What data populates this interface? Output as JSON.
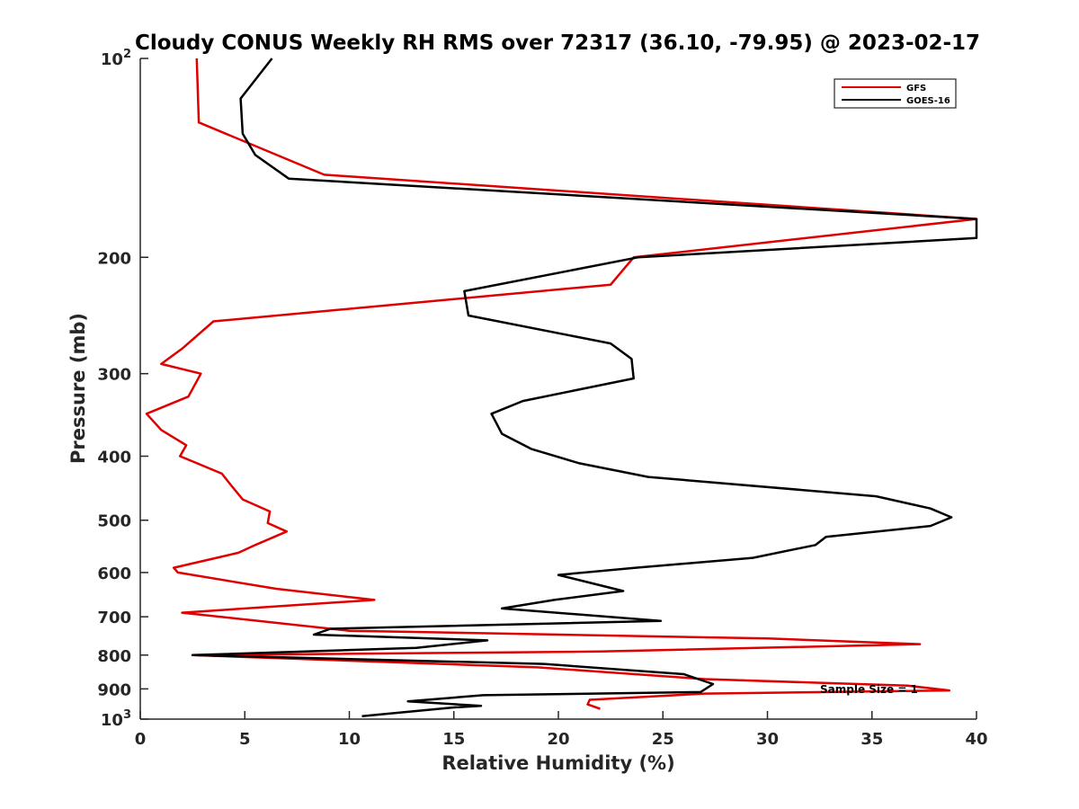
{
  "chart_data": {
    "type": "line",
    "title": "Cloudy CONUS Weekly RH RMS over 72317 (36.10, -79.95) @ 2023-02-17",
    "xlabel": "Relative Humidity (%)",
    "ylabel": "Pressure (mb)",
    "xlim": [
      0,
      40
    ],
    "ylim": [
      100,
      1000
    ],
    "y_scale": "log",
    "y_reversed": true,
    "grid": false,
    "legend_position": "top-right",
    "x_ticks": [
      "0",
      "5",
      "10",
      "15",
      "20",
      "25",
      "30",
      "35",
      "40"
    ],
    "y_ticks": [
      {
        "value": 100,
        "base": "10",
        "exp": "2"
      },
      {
        "value": 200,
        "label": "200"
      },
      {
        "value": 300,
        "label": "300"
      },
      {
        "value": 400,
        "label": "400"
      },
      {
        "value": 500,
        "label": "500"
      },
      {
        "value": 600,
        "label": "600"
      },
      {
        "value": 700,
        "label": "700"
      },
      {
        "value": 800,
        "label": "800"
      },
      {
        "value": 900,
        "label": "900"
      },
      {
        "value": 1000,
        "base": "10",
        "exp": "3"
      }
    ],
    "annotation": "Sample Size = 1",
    "series": [
      {
        "name": "GFS",
        "color": "#e00000",
        "points": [
          [
            2.7,
            100
          ],
          [
            2.8,
            125
          ],
          [
            8.8,
            150
          ],
          [
            40,
            175
          ],
          [
            23.6,
            200
          ],
          [
            22.5,
            220
          ],
          [
            3.5,
            250
          ],
          [
            2.0,
            275
          ],
          [
            1.0,
            290
          ],
          [
            2.9,
            300
          ],
          [
            2.3,
            325
          ],
          [
            0.3,
            345
          ],
          [
            1.0,
            365
          ],
          [
            2.2,
            385
          ],
          [
            1.9,
            400
          ],
          [
            3.9,
            425
          ],
          [
            4.4,
            445
          ],
          [
            4.9,
            465
          ],
          [
            6.2,
            485
          ],
          [
            6.1,
            505
          ],
          [
            7.0,
            520
          ],
          [
            5.5,
            545
          ],
          [
            4.7,
            560
          ],
          [
            1.6,
            590
          ],
          [
            1.8,
            600
          ],
          [
            6.5,
            635
          ],
          [
            11.2,
            660
          ],
          [
            2.0,
            690
          ],
          [
            10.0,
            735
          ],
          [
            30.0,
            755
          ],
          [
            37.3,
            770
          ],
          [
            22.0,
            790
          ],
          [
            2.5,
            800
          ],
          [
            19.0,
            835
          ],
          [
            27.0,
            870
          ],
          [
            36.7,
            890
          ],
          [
            38.7,
            905
          ],
          [
            27.0,
            915
          ],
          [
            21.5,
            935
          ],
          [
            21.4,
            950
          ],
          [
            22.0,
            965
          ]
        ]
      },
      {
        "name": "GOES-16",
        "color": "#000000",
        "points": [
          [
            6.3,
            100
          ],
          [
            4.8,
            115
          ],
          [
            4.9,
            130
          ],
          [
            5.5,
            140
          ],
          [
            7.1,
            152
          ],
          [
            40,
            175
          ],
          [
            40,
            187
          ],
          [
            23.8,
            200
          ],
          [
            15.5,
            225
          ],
          [
            15.7,
            245
          ],
          [
            22.5,
            270
          ],
          [
            23.5,
            285
          ],
          [
            23.6,
            305
          ],
          [
            18.3,
            330
          ],
          [
            16.8,
            345
          ],
          [
            17.3,
            370
          ],
          [
            18.7,
            390
          ],
          [
            21.0,
            410
          ],
          [
            24.3,
            430
          ],
          [
            35.2,
            460
          ],
          [
            37.8,
            480
          ],
          [
            38.8,
            495
          ],
          [
            37.8,
            510
          ],
          [
            32.8,
            530
          ],
          [
            32.3,
            545
          ],
          [
            29.3,
            570
          ],
          [
            23.7,
            590
          ],
          [
            20.0,
            605
          ],
          [
            23.1,
            640
          ],
          [
            19.8,
            660
          ],
          [
            17.3,
            680
          ],
          [
            24.9,
            710
          ],
          [
            9.1,
            730
          ],
          [
            8.3,
            745
          ],
          [
            16.6,
            760
          ],
          [
            13.2,
            780
          ],
          [
            2.5,
            800
          ],
          [
            19.3,
            825
          ],
          [
            26.0,
            855
          ],
          [
            27.4,
            885
          ],
          [
            26.8,
            910
          ],
          [
            16.4,
            920
          ],
          [
            12.8,
            940
          ],
          [
            16.3,
            955
          ],
          [
            15.0,
            960
          ],
          [
            10.6,
            990
          ]
        ]
      }
    ]
  }
}
